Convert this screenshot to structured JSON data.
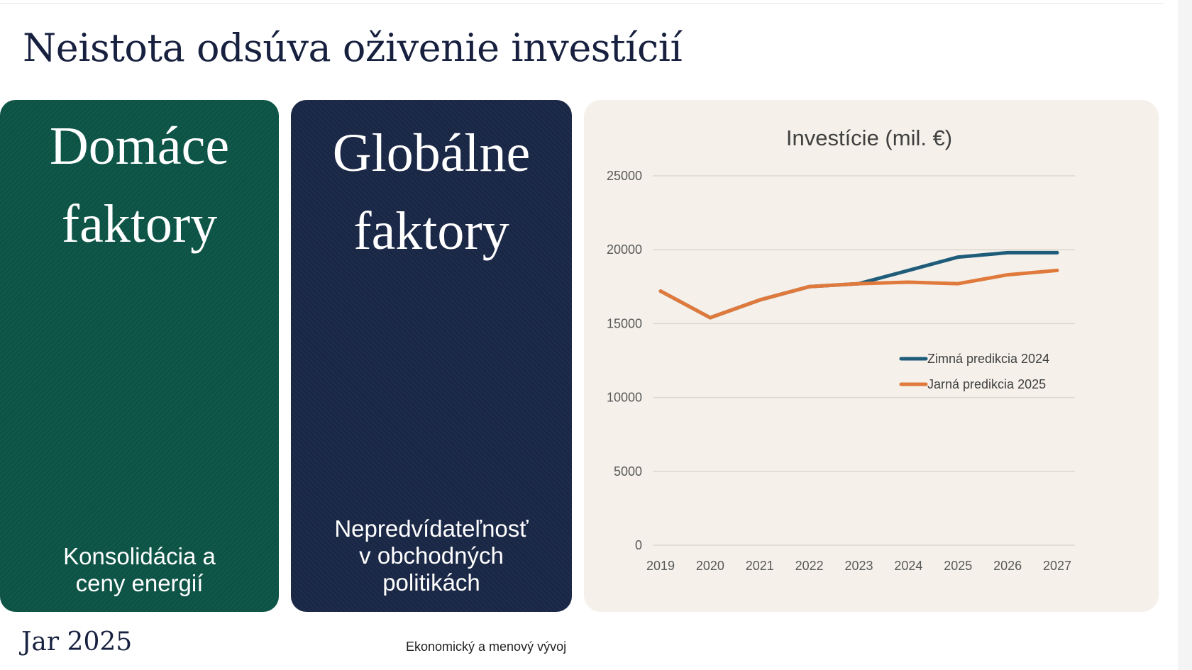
{
  "page": {
    "title": "Neistota odsúva oživenie investícií",
    "footer_left": "Jar 2025",
    "footer_center": "Ekonomický a menový vývoj"
  },
  "panels": {
    "domestic": {
      "heading_line1": "Domáce",
      "heading_line2": "faktory",
      "caption_line1": "Konsolidácia a",
      "caption_line2": "ceny energií",
      "color": "#0c5547"
    },
    "global": {
      "heading_line1": "Globálne",
      "heading_line2": "faktory",
      "caption_line1": "Nepredvídateľnosť",
      "caption_line2": "v obchodných",
      "caption_line3": "politikách",
      "color": "#1a2848"
    }
  },
  "chart_data": {
    "type": "line",
    "title": "Investície (mil. €)",
    "xlabel": "",
    "ylabel": "",
    "x": [
      "2019",
      "2020",
      "2021",
      "2022",
      "2023",
      "2024",
      "2025",
      "2026",
      "2027"
    ],
    "ylim": [
      0,
      25000
    ],
    "yticks": [
      0,
      5000,
      10000,
      15000,
      20000,
      25000
    ],
    "grid": true,
    "legend_position": "right",
    "background": "#f5f1ea",
    "series": [
      {
        "name": "Zimná predikcia 2024",
        "color": "#1f5c7a",
        "values": [
          17200,
          15400,
          16600,
          17500,
          17700,
          18600,
          19500,
          19800,
          19800
        ]
      },
      {
        "name": "Jarná predikcia 2025",
        "color": "#e07a3c",
        "values": [
          17200,
          15400,
          16600,
          17500,
          17700,
          17800,
          17700,
          18300,
          18600
        ]
      }
    ]
  }
}
